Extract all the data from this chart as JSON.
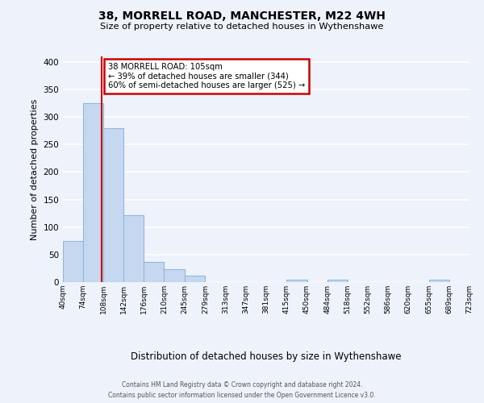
{
  "title1": "38, MORRELL ROAD, MANCHESTER, M22 4WH",
  "title2": "Size of property relative to detached houses in Wythenshawe",
  "xlabel": "Distribution of detached houses by size in Wythenshawe",
  "ylabel": "Number of detached properties",
  "bin_edges": [
    40,
    74,
    108,
    142,
    176,
    210,
    245,
    279,
    313,
    347,
    381,
    415,
    450,
    484,
    518,
    552,
    586,
    620,
    655,
    689,
    723
  ],
  "bin_heights": [
    75,
    325,
    280,
    122,
    37,
    24,
    12,
    0,
    0,
    0,
    0,
    5,
    0,
    5,
    0,
    0,
    0,
    0,
    5,
    0
  ],
  "bar_color": "#c5d8f0",
  "bar_edge_color": "#90b8dc",
  "vline_x": 105,
  "vline_color": "#cc0000",
  "annotation_title": "38 MORRELL ROAD: 105sqm",
  "annotation_line1": "← 39% of detached houses are smaller (344)",
  "annotation_line2": "60% of semi-detached houses are larger (525) →",
  "annotation_box_color": "#cc0000",
  "ylim": [
    0,
    410
  ],
  "yticks": [
    0,
    50,
    100,
    150,
    200,
    250,
    300,
    350,
    400
  ],
  "tick_labels": [
    "40sqm",
    "74sqm",
    "108sqm",
    "142sqm",
    "176sqm",
    "210sqm",
    "245sqm",
    "279sqm",
    "313sqm",
    "347sqm",
    "381sqm",
    "415sqm",
    "450sqm",
    "484sqm",
    "518sqm",
    "552sqm",
    "586sqm",
    "620sqm",
    "655sqm",
    "689sqm",
    "723sqm"
  ],
  "footer1": "Contains HM Land Registry data © Crown copyright and database right 2024.",
  "footer2": "Contains public sector information licensed under the Open Government Licence v3.0.",
  "bg_color": "#eef2fb",
  "grid_color": "#ffffff"
}
